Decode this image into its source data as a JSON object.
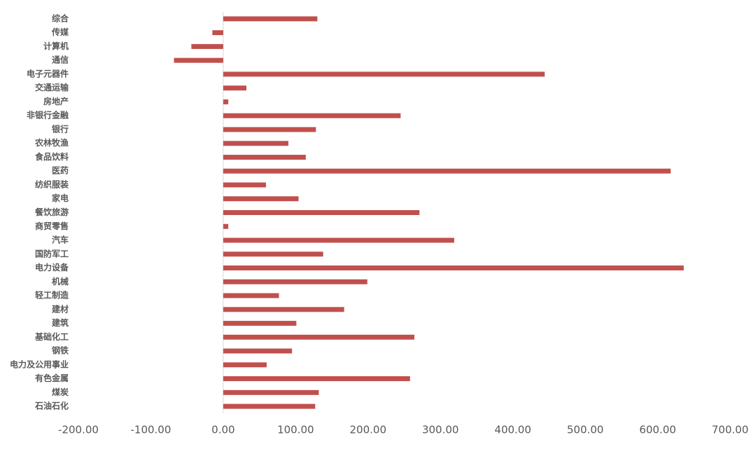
{
  "chart_data": {
    "type": "barh",
    "color": "#c0504d",
    "categories": [
      "综合",
      "传媒",
      "计算机",
      "通信",
      "电子元器件",
      "交通运输",
      "房地产",
      "非银行金融",
      "银行",
      "农林牧渔",
      "食品饮料",
      "医药",
      "纺织服装",
      "家电",
      "餐饮旅游",
      "商贸零售",
      "汽车",
      "国防军工",
      "电力设备",
      "机械",
      "轻工制造",
      "建材",
      "建筑",
      "基础化工",
      "钢铁",
      "电力及公用事业",
      "有色金属",
      "煤炭",
      "石油石化"
    ],
    "values": [
      130,
      -15,
      -44,
      -68,
      444,
      32,
      7,
      245,
      128,
      90,
      114,
      618,
      59,
      104,
      271,
      7,
      319,
      138,
      636,
      199,
      77,
      167,
      101,
      264,
      95,
      60,
      258,
      132,
      127
    ],
    "xlim": [
      -200,
      700
    ],
    "xticks": [
      {
        "value": -200,
        "label": "-200.00"
      },
      {
        "value": -100,
        "label": "-100.00"
      },
      {
        "value": 0,
        "label": "0.00"
      },
      {
        "value": 100,
        "label": "100.00"
      },
      {
        "value": 200,
        "label": "200.00"
      },
      {
        "value": 300,
        "label": "300.00"
      },
      {
        "value": 400,
        "label": "400.00"
      },
      {
        "value": 500,
        "label": "500.00"
      },
      {
        "value": 600,
        "label": "600.00"
      },
      {
        "value": 700,
        "label": "700.00"
      }
    ]
  }
}
